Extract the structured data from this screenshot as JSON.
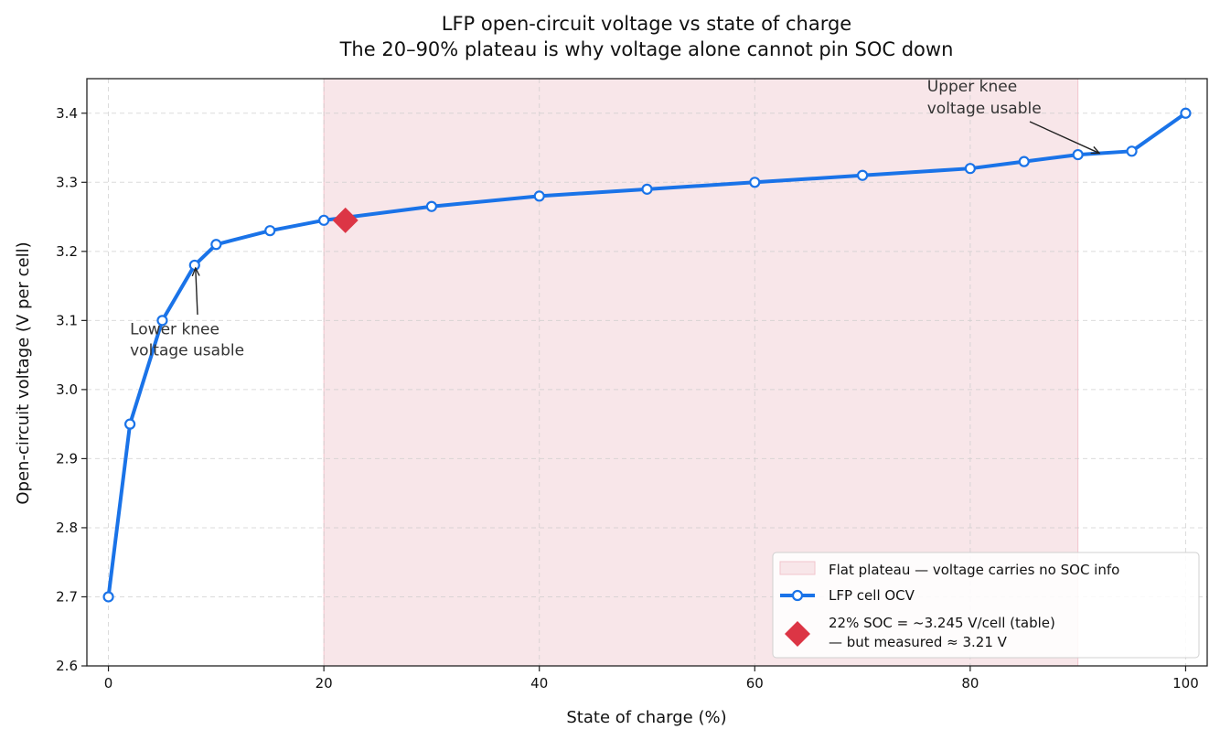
{
  "chart_data": {
    "type": "line",
    "title": "LFP open-circuit voltage vs state of charge",
    "subtitle": "The 20–90% plateau is why voltage alone cannot pin SOC down",
    "xlabel": "State of charge (%)",
    "ylabel": "Open-circuit voltage (V per cell)",
    "xlim": [
      -2,
      102
    ],
    "ylim": [
      2.6,
      3.45
    ],
    "xticks": [
      0,
      20,
      40,
      60,
      80,
      100
    ],
    "yticks": [
      2.6,
      2.7,
      2.8,
      2.9,
      3.0,
      3.1,
      3.2,
      3.3,
      3.4
    ],
    "grid": true,
    "legend_position": "lower-right",
    "series": [
      {
        "name": "LFP cell OCV",
        "color": "#1a73e8",
        "x": [
          0,
          2,
          5,
          8,
          10,
          15,
          20,
          30,
          40,
          50,
          60,
          70,
          80,
          85,
          90,
          95,
          100
        ],
        "y": [
          2.7,
          2.95,
          3.1,
          3.18,
          3.21,
          3.23,
          3.245,
          3.265,
          3.28,
          3.29,
          3.3,
          3.31,
          3.32,
          3.33,
          3.34,
          3.345,
          3.4
        ]
      }
    ],
    "marker_point": {
      "label_line1": "22% SOC = ~3.245 V/cell (table)",
      "label_line2": "— but measured ≈ 3.21 V",
      "x": 22,
      "y": 3.245,
      "color": "#dc3545"
    },
    "plateau_band": {
      "label": "Flat plateau — voltage carries no SOC info",
      "x_start": 20,
      "x_end": 90,
      "color": "#f8e6e9"
    },
    "annotations": [
      {
        "id": "lower",
        "line1": "Lower knee",
        "line2": "voltage usable",
        "text_x": 2,
        "text_y": 3.1,
        "arrow_x": 8,
        "arrow_y": 3.18
      },
      {
        "id": "upper",
        "line1": "Upper knee",
        "line2": "voltage usable",
        "text_x": 76,
        "text_y": 3.42,
        "arrow_x": 92,
        "arrow_y": 3.342
      }
    ]
  }
}
